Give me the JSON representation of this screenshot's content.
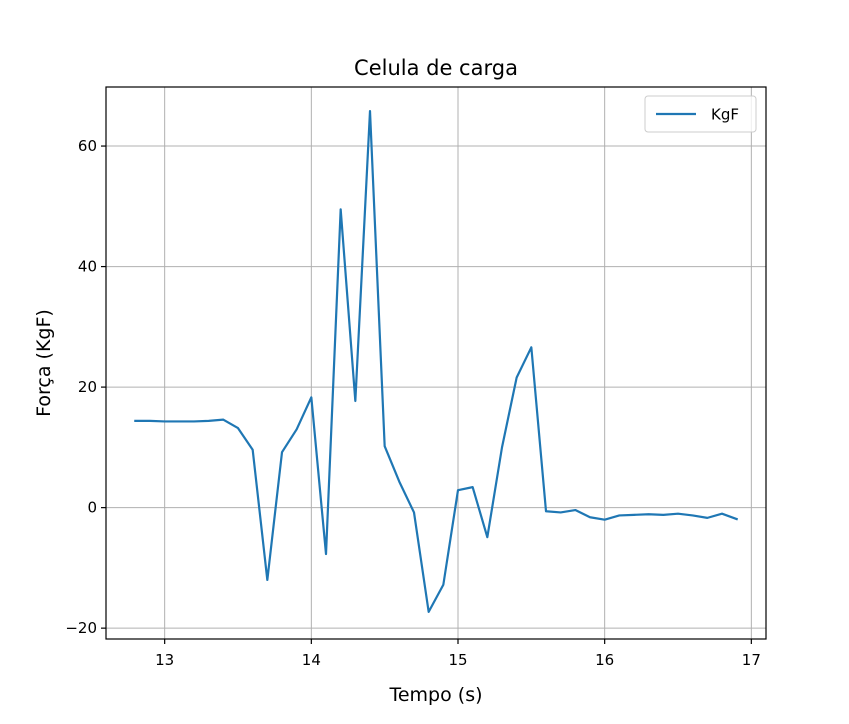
{
  "chart_data": {
    "type": "line",
    "title": "Celula de carga",
    "xlabel": "Tempo (s)",
    "ylabel": "Força (KgF)",
    "xlim": [
      12.6,
      17.1
    ],
    "ylim": [
      -21.8,
      69.8
    ],
    "xticks": [
      13,
      14,
      15,
      16,
      17
    ],
    "xtick_labels": [
      "13",
      "14",
      "15",
      "16",
      "17"
    ],
    "yticks": [
      -20,
      0,
      20,
      40,
      60
    ],
    "ytick_labels": [
      "−20",
      "0",
      "20",
      "40",
      "60"
    ],
    "grid": true,
    "legend_position": "top-right",
    "colors": {
      "series": "#1f77b4",
      "grid": "#b0b0b0",
      "axes": "#000000"
    },
    "series": [
      {
        "name": "KgF",
        "x": [
          12.8,
          12.9,
          13.0,
          13.1,
          13.2,
          13.3,
          13.4,
          13.5,
          13.6,
          13.7,
          13.8,
          13.9,
          14.0,
          14.1,
          14.2,
          14.3,
          14.4,
          14.5,
          14.6,
          14.7,
          14.8,
          14.9,
          15.0,
          15.1,
          15.2,
          15.3,
          15.4,
          15.5,
          15.6,
          15.7,
          15.8,
          15.9,
          16.0,
          16.1,
          16.2,
          16.3,
          16.4,
          16.5,
          16.6,
          16.7,
          16.8,
          16.9
        ],
        "y": [
          14.4,
          14.4,
          14.3,
          14.3,
          14.3,
          14.4,
          14.6,
          13.2,
          9.6,
          -12.0,
          9.2,
          13.0,
          18.3,
          -7.7,
          49.5,
          17.7,
          65.8,
          10.2,
          4.3,
          -0.8,
          -17.3,
          -12.8,
          2.9,
          3.4,
          -4.9,
          10.0,
          21.6,
          26.6,
          -0.6,
          -0.8,
          -0.4,
          -1.6,
          -2.0,
          -1.3,
          -1.2,
          -1.1,
          -1.2,
          -1.0,
          -1.3,
          -1.7,
          -1.0,
          -1.9
        ]
      }
    ]
  }
}
